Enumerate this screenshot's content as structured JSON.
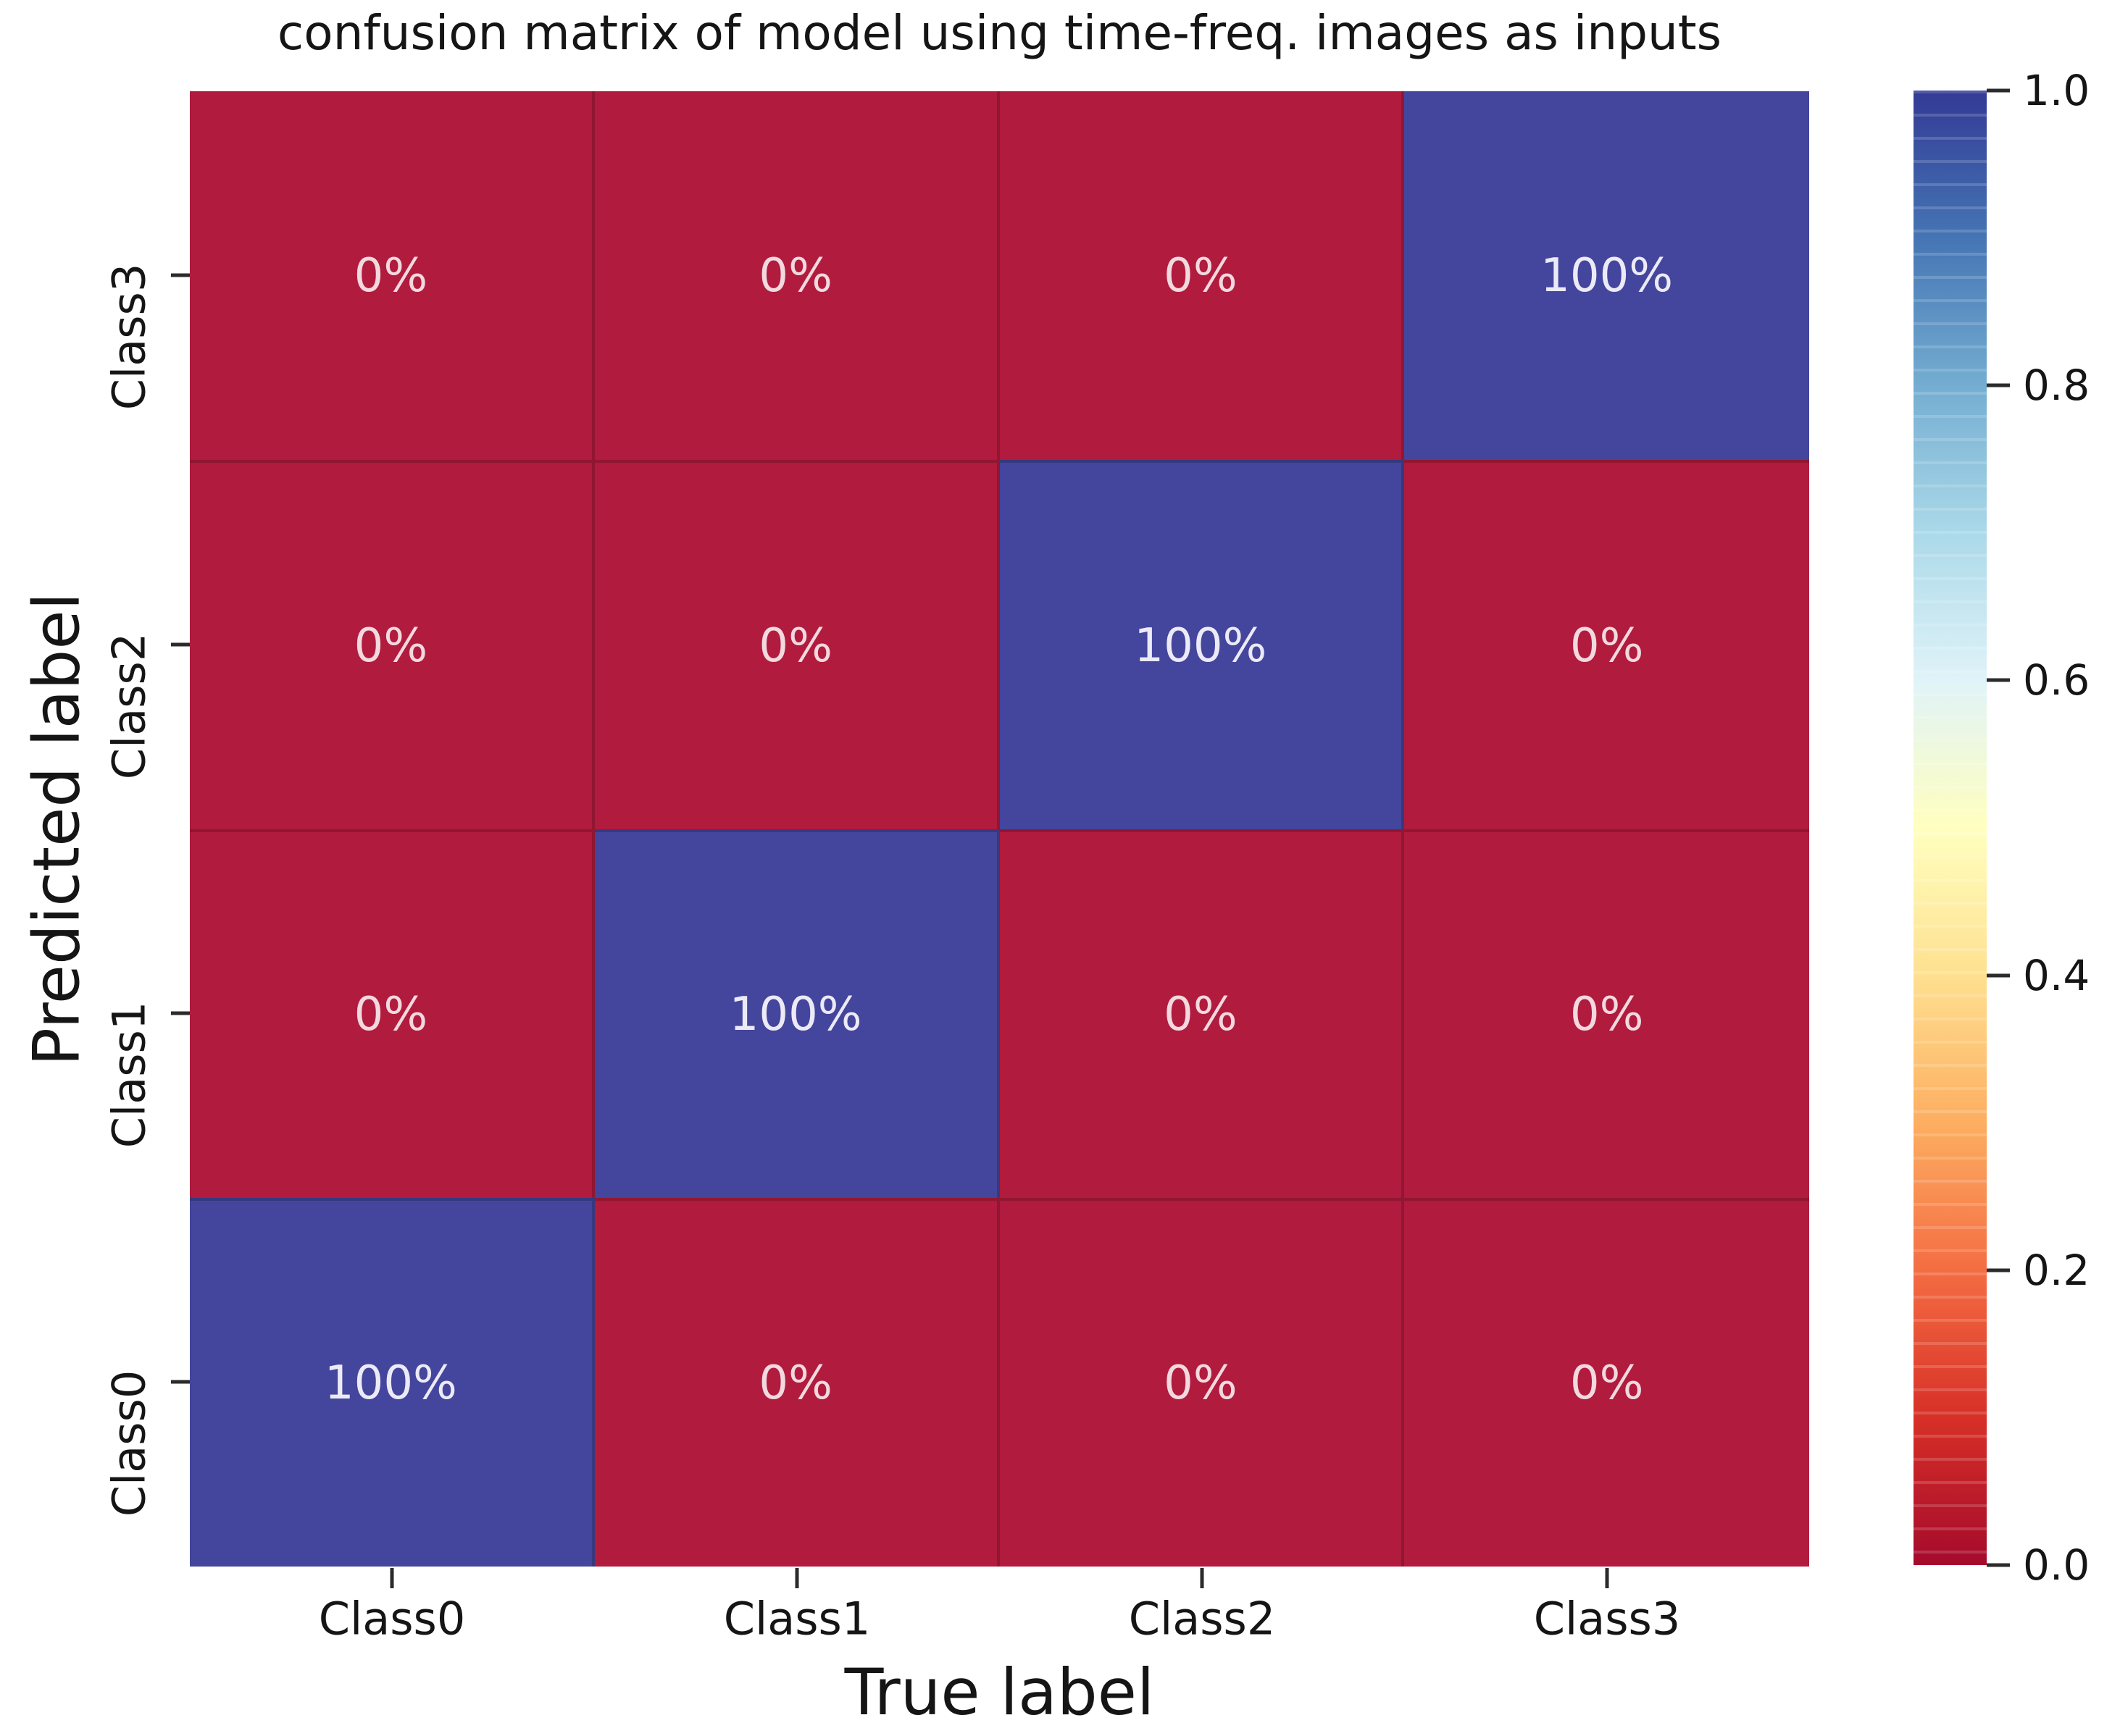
{
  "figure": {
    "title": "confusion matrix of model using time-freq. images as inputs",
    "background": "#ffffff"
  },
  "chart_data": {
    "type": "heatmap",
    "title": "confusion matrix of model using time-freq. images as inputs",
    "xlabel": "True label",
    "ylabel": "Predicted label",
    "x_categories": [
      "Class0",
      "Class1",
      "Class2",
      "Class3"
    ],
    "y_categories_top_to_bottom": [
      "Class3",
      "Class2",
      "Class1",
      "Class0"
    ],
    "matrix_values_top_to_bottom": [
      [
        0,
        0,
        0,
        1
      ],
      [
        0,
        0,
        1,
        0
      ],
      [
        0,
        1,
        0,
        0
      ],
      [
        1,
        0,
        0,
        0
      ]
    ],
    "cell_labels_top_to_bottom": [
      [
        "0%",
        "0%",
        "0%",
        "100%"
      ],
      [
        "0%",
        "0%",
        "100%",
        "0%"
      ],
      [
        "0%",
        "100%",
        "0%",
        "0%"
      ],
      [
        "100%",
        "0%",
        "0%",
        "0%"
      ]
    ],
    "value_range": [
      0.0,
      1.0
    ],
    "colormap": "RdYlBu",
    "legend_position": "right-colorbar",
    "grid": "cell-seams",
    "colorbar": {
      "ticks": [
        "1.0",
        "0.8",
        "0.6",
        "0.4",
        "0.2",
        "0.0"
      ],
      "stops_top_to_bottom": [
        "#333a95",
        "#4575b4",
        "#74add1",
        "#abd9e9",
        "#e0f3f8",
        "#ffffbf",
        "#fee090",
        "#fdae61",
        "#f46d43",
        "#d73027",
        "#a50a2c"
      ]
    },
    "colors": {
      "cell_low": "#b11b3d",
      "cell_high": "#44459c",
      "annotation_on_low": "#f2d9df",
      "annotation_on_high": "#eceaf6",
      "tick_mark": "#2b2b2b",
      "text": "#151515"
    }
  }
}
